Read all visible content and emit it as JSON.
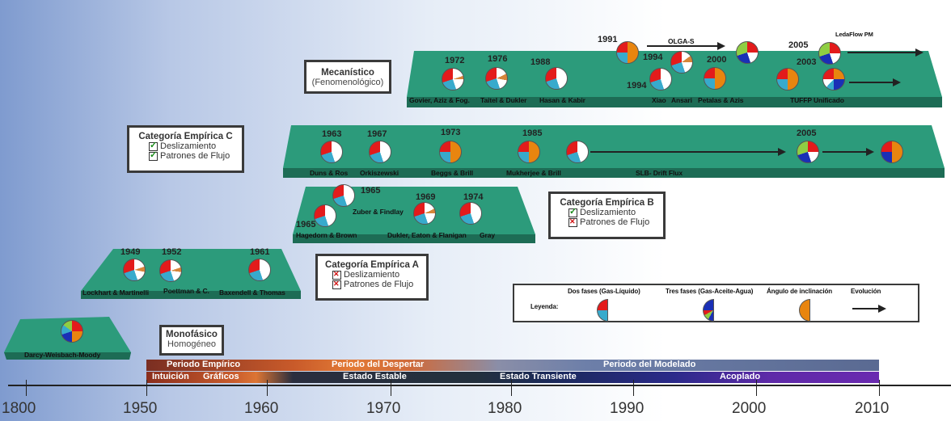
{
  "platforms": {
    "darcy": {
      "label": "Darcy-Weisbach-Moody"
    },
    "cat_a": {
      "labels": [
        "Lockhart & Martinelli",
        "Poettman & C.",
        "Baxendell & Thomas"
      ],
      "years": [
        "1949",
        "1952",
        "1961"
      ]
    },
    "cat_b": {
      "labels": [
        "Hagedorn & Brown",
        "Zuber & Findlay",
        "Dukler, Eaton & Flanigan",
        "Gray"
      ],
      "years": [
        "1965",
        "1965",
        "1969",
        "1974"
      ]
    },
    "cat_c": {
      "labels": [
        "Duns & Ros",
        "Orkiszewski",
        "Beggs & Brill",
        "Mukherjee & Brill",
        "SLB- Drift Flux"
      ],
      "years": [
        "1963",
        "1967",
        "1973",
        "1985",
        "2005"
      ]
    },
    "mech": {
      "labels": [
        "Govier, Aziz & Fog.",
        "Taitel & Dukler",
        "Hasan & Kabir",
        "Xiao",
        "Ansari",
        "Petalas & Azis",
        "TUFFP Unificado",
        "OLGA-S",
        "LedaFlow PM"
      ],
      "years": [
        "1972",
        "1976",
        "1988",
        "1991",
        "1994",
        "1994",
        "2000",
        "2005",
        "2003"
      ]
    }
  },
  "boxes": {
    "mono": {
      "title": "Monofásico",
      "subtitle": "Homogéneo"
    },
    "mecan": {
      "title": "Mecanístico",
      "subtitle": "(Fenomenológico)"
    },
    "cat_a": {
      "title": "Categoría Empírica A",
      "items": [
        "Deslizamiento",
        "Patrones de Flujo"
      ]
    },
    "cat_b": {
      "title": "Categoría Empírica B",
      "items": [
        "Deslizamiento",
        "Patrones de Flujo"
      ]
    },
    "cat_c": {
      "title": "Categoría Empírica C",
      "items": [
        "Deslizamiento",
        "Patrones de Flujo"
      ]
    }
  },
  "legend": {
    "title": "Leyenda:",
    "two_phase": "Dos fases (Gas-Líquido)",
    "three_phase": "Tres fases (Gas-Aceite-Agua)",
    "angle": "Ángulo de inclinación",
    "evolution": "Evolución"
  },
  "bands": {
    "top": [
      "Periodo Empírico",
      "Periodo del Despertar",
      "Periodo del Modelado"
    ],
    "bottom": [
      "Intuición",
      "Gráficos",
      "Estado Estable",
      "Estado Transiente",
      "Acoplado"
    ]
  },
  "axis": {
    "ticks": [
      "1800",
      "1950",
      "1960",
      "1970",
      "1980",
      "1990",
      "2000",
      "2010"
    ]
  }
}
